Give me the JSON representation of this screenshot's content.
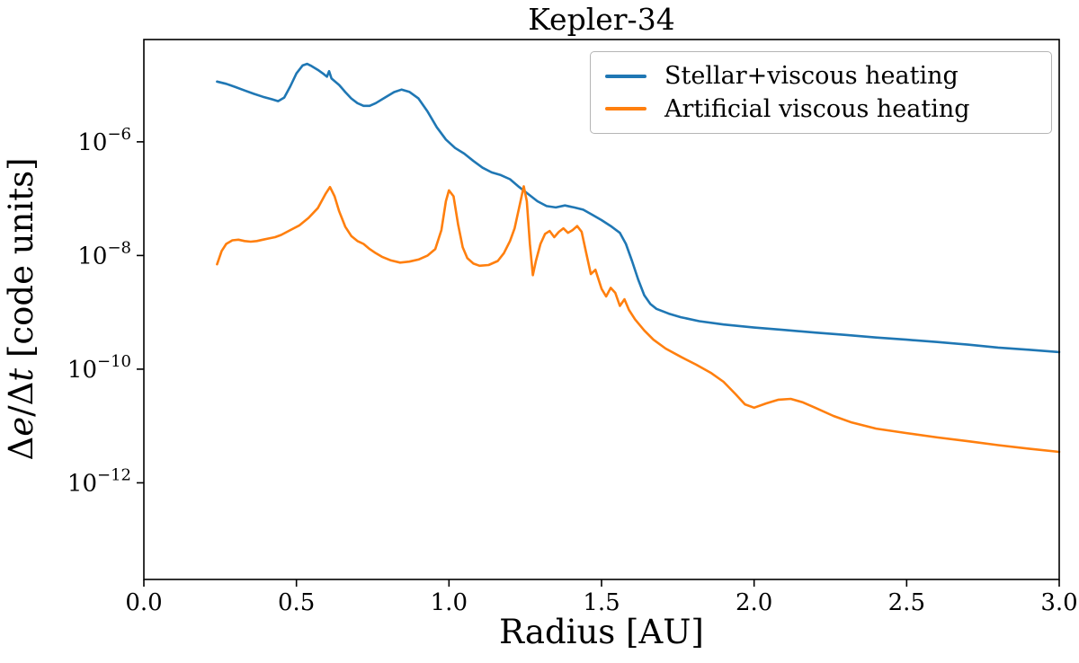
{
  "figure": {
    "background": "#ffffff",
    "axes_color": "#000000"
  },
  "chart_data": {
    "type": "line",
    "title": "Kepler-34",
    "xlabel": "Radius [AU]",
    "ylabel": "Δe/Δt [code units]",
    "ylabel_rich": {
      "delta1": "Δ",
      "var1": "e",
      "slash_delta": "/Δ",
      "var2": "t",
      "suffix": " [code units]"
    },
    "xlim": [
      0.0,
      3.0
    ],
    "yscale": "log",
    "ylim_exponents": [
      -13.7,
      -4.2
    ],
    "grid": false,
    "xticks": [
      0.0,
      0.5,
      1.0,
      1.5,
      2.0,
      2.5,
      3.0
    ],
    "xtick_labels": [
      "0.0",
      "0.5",
      "1.0",
      "1.5",
      "2.0",
      "2.5",
      "3.0"
    ],
    "ytick_base": "10",
    "ytick_exponents": [
      -6,
      -8,
      -10,
      -12
    ],
    "legend": {
      "position": "upper right",
      "entries": [
        "Stellar+viscous heating",
        "Artificial viscous heating"
      ]
    },
    "series": [
      {
        "name": "Stellar+viscous heating",
        "color": "#1f77b4",
        "points": [
          [
            0.24,
            1.15e-05
          ],
          [
            0.27,
            1.05e-05
          ],
          [
            0.3,
            9.2e-06
          ],
          [
            0.33,
            8e-06
          ],
          [
            0.36,
            7e-06
          ],
          [
            0.39,
            6.2e-06
          ],
          [
            0.42,
            5.6e-06
          ],
          [
            0.44,
            5.2e-06
          ],
          [
            0.46,
            6e-06
          ],
          [
            0.48,
            9.5e-06
          ],
          [
            0.5,
            1.6e-05
          ],
          [
            0.52,
            2.2e-05
          ],
          [
            0.535,
            2.35e-05
          ],
          [
            0.55,
            2.15e-05
          ],
          [
            0.57,
            1.85e-05
          ],
          [
            0.59,
            1.55e-05
          ],
          [
            0.6,
            1.4e-05
          ],
          [
            0.607,
            1.75e-05
          ],
          [
            0.615,
            1.3e-05
          ],
          [
            0.64,
            1e-05
          ],
          [
            0.66,
            7.5e-06
          ],
          [
            0.68,
            5.8e-06
          ],
          [
            0.7,
            4.8e-06
          ],
          [
            0.72,
            4.3e-06
          ],
          [
            0.74,
            4.3e-06
          ],
          [
            0.76,
            4.8e-06
          ],
          [
            0.79,
            6e-06
          ],
          [
            0.82,
            7.5e-06
          ],
          [
            0.845,
            8.3e-06
          ],
          [
            0.87,
            7.6e-06
          ],
          [
            0.9,
            5.8e-06
          ],
          [
            0.93,
            3.4e-06
          ],
          [
            0.96,
            1.8e-06
          ],
          [
            0.99,
            1.1e-06
          ],
          [
            1.02,
            7.8e-07
          ],
          [
            1.05,
            6.2e-07
          ],
          [
            1.08,
            4.6e-07
          ],
          [
            1.11,
            3.5e-07
          ],
          [
            1.14,
            2.9e-07
          ],
          [
            1.17,
            2.6e-07
          ],
          [
            1.2,
            2.2e-07
          ],
          [
            1.23,
            1.6e-07
          ],
          [
            1.26,
            1.2e-07
          ],
          [
            1.29,
            9e-08
          ],
          [
            1.32,
            7.4e-08
          ],
          [
            1.35,
            7e-08
          ],
          [
            1.38,
            7.6e-08
          ],
          [
            1.41,
            7e-08
          ],
          [
            1.44,
            6.4e-08
          ],
          [
            1.47,
            5.2e-08
          ],
          [
            1.5,
            4.2e-08
          ],
          [
            1.53,
            3.3e-08
          ],
          [
            1.56,
            2.5e-08
          ],
          [
            1.58,
            1.6e-08
          ],
          [
            1.6,
            8e-09
          ],
          [
            1.62,
            3.8e-09
          ],
          [
            1.64,
            2e-09
          ],
          [
            1.66,
            1.4e-09
          ],
          [
            1.68,
            1.15e-09
          ],
          [
            1.72,
            9.5e-10
          ],
          [
            1.76,
            8.2e-10
          ],
          [
            1.82,
            7e-10
          ],
          [
            1.9,
            6.1e-10
          ],
          [
            2.0,
            5.4e-10
          ],
          [
            2.1,
            4.9e-10
          ],
          [
            2.2,
            4.4e-10
          ],
          [
            2.3,
            4e-10
          ],
          [
            2.4,
            3.6e-10
          ],
          [
            2.5,
            3.3e-10
          ],
          [
            2.6,
            3e-10
          ],
          [
            2.7,
            2.7e-10
          ],
          [
            2.8,
            2.4e-10
          ],
          [
            2.9,
            2.2e-10
          ],
          [
            3.0,
            2e-10
          ]
        ]
      },
      {
        "name": "Artificial viscous heating",
        "color": "#ff7f0e",
        "points": [
          [
            0.24,
            7e-09
          ],
          [
            0.255,
            1.2e-08
          ],
          [
            0.27,
            1.6e-08
          ],
          [
            0.29,
            1.85e-08
          ],
          [
            0.31,
            1.9e-08
          ],
          [
            0.33,
            1.8e-08
          ],
          [
            0.35,
            1.75e-08
          ],
          [
            0.37,
            1.8e-08
          ],
          [
            0.39,
            1.9e-08
          ],
          [
            0.41,
            2e-08
          ],
          [
            0.43,
            2.1e-08
          ],
          [
            0.45,
            2.3e-08
          ],
          [
            0.48,
            2.8e-08
          ],
          [
            0.51,
            3.4e-08
          ],
          [
            0.54,
            4.6e-08
          ],
          [
            0.57,
            6.8e-08
          ],
          [
            0.595,
            1.2e-07
          ],
          [
            0.61,
            1.6e-07
          ],
          [
            0.625,
            1.1e-07
          ],
          [
            0.64,
            6e-08
          ],
          [
            0.66,
            3.2e-08
          ],
          [
            0.68,
            2.2e-08
          ],
          [
            0.7,
            1.8e-08
          ],
          [
            0.72,
            1.6e-08
          ],
          [
            0.74,
            1.3e-08
          ],
          [
            0.76,
            1.1e-08
          ],
          [
            0.78,
            9.5e-09
          ],
          [
            0.81,
            8.2e-09
          ],
          [
            0.84,
            7.5e-09
          ],
          [
            0.87,
            7.8e-09
          ],
          [
            0.9,
            8.5e-09
          ],
          [
            0.93,
            1e-08
          ],
          [
            0.955,
            1.3e-08
          ],
          [
            0.975,
            2.8e-08
          ],
          [
            0.99,
            9e-08
          ],
          [
            1.0,
            1.4e-07
          ],
          [
            1.015,
            1.1e-07
          ],
          [
            1.03,
            3.5e-08
          ],
          [
            1.045,
            1.4e-08
          ],
          [
            1.06,
            9e-09
          ],
          [
            1.08,
            7.2e-09
          ],
          [
            1.1,
            6.6e-09
          ],
          [
            1.13,
            6.8e-09
          ],
          [
            1.16,
            8e-09
          ],
          [
            1.18,
            1.1e-08
          ],
          [
            1.2,
            1.8e-08
          ],
          [
            1.215,
            3e-08
          ],
          [
            1.23,
            7e-08
          ],
          [
            1.245,
            1.65e-07
          ],
          [
            1.255,
            9e-08
          ],
          [
            1.265,
            1.6e-08
          ],
          [
            1.275,
            4.5e-09
          ],
          [
            1.285,
            8e-09
          ],
          [
            1.3,
            1.6e-08
          ],
          [
            1.315,
            2.4e-08
          ],
          [
            1.33,
            2.7e-08
          ],
          [
            1.345,
            2.1e-08
          ],
          [
            1.36,
            2.6e-08
          ],
          [
            1.375,
            3e-08
          ],
          [
            1.39,
            2.5e-08
          ],
          [
            1.405,
            2.8e-08
          ],
          [
            1.42,
            3.3e-08
          ],
          [
            1.435,
            2.6e-08
          ],
          [
            1.45,
            1.1e-08
          ],
          [
            1.465,
            4.7e-09
          ],
          [
            1.48,
            5.6e-09
          ],
          [
            1.5,
            2.6e-09
          ],
          [
            1.515,
            1.9e-09
          ],
          [
            1.53,
            2.7e-09
          ],
          [
            1.545,
            2.2e-09
          ],
          [
            1.56,
            1.3e-09
          ],
          [
            1.575,
            1.7e-09
          ],
          [
            1.59,
            1.1e-09
          ],
          [
            1.61,
            7.5e-10
          ],
          [
            1.64,
            4.8e-10
          ],
          [
            1.67,
            3.3e-10
          ],
          [
            1.71,
            2.3e-10
          ],
          [
            1.76,
            1.65e-10
          ],
          [
            1.81,
            1.2e-10
          ],
          [
            1.86,
            8.5e-11
          ],
          [
            1.9,
            6e-11
          ],
          [
            1.94,
            3.6e-11
          ],
          [
            1.97,
            2.4e-11
          ],
          [
            2.0,
            2.1e-11
          ],
          [
            2.04,
            2.5e-11
          ],
          [
            2.08,
            2.9e-11
          ],
          [
            2.12,
            3e-11
          ],
          [
            2.16,
            2.6e-11
          ],
          [
            2.2,
            2.1e-11
          ],
          [
            2.26,
            1.5e-11
          ],
          [
            2.32,
            1.15e-11
          ],
          [
            2.4,
            9e-12
          ],
          [
            2.5,
            7.5e-12
          ],
          [
            2.6,
            6.3e-12
          ],
          [
            2.7,
            5.4e-12
          ],
          [
            2.8,
            4.6e-12
          ],
          [
            2.9,
            4e-12
          ],
          [
            3.0,
            3.5e-12
          ]
        ]
      }
    ]
  }
}
